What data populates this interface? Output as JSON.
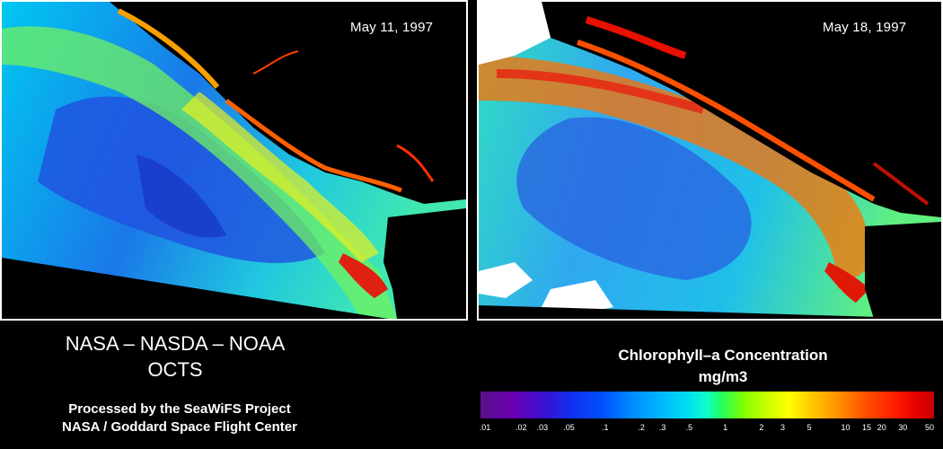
{
  "panels": [
    {
      "date": "May 11, 1997"
    },
    {
      "date": "May 18, 1997"
    }
  ],
  "credits": {
    "agencies": "NASA – NASDA – NOAA",
    "sensor": "OCTS",
    "processed_by": "Processed by the SeaWiFS Project",
    "center": "NASA / Goddard Space Flight Center"
  },
  "legend": {
    "title": "Chlorophyll–a Concentration",
    "unit": "mg/m3",
    "ticks": [
      ".01",
      ".02",
      ".03",
      ".05",
      ".1",
      ".2",
      ".3",
      ".5",
      "1",
      "2",
      "3",
      "5",
      "10",
      "15",
      "20",
      "30",
      "50"
    ]
  },
  "colors": {
    "low": "#6a00b0",
    "mid": "#00e0f0",
    "high": "#c80000",
    "land": "#000000"
  }
}
